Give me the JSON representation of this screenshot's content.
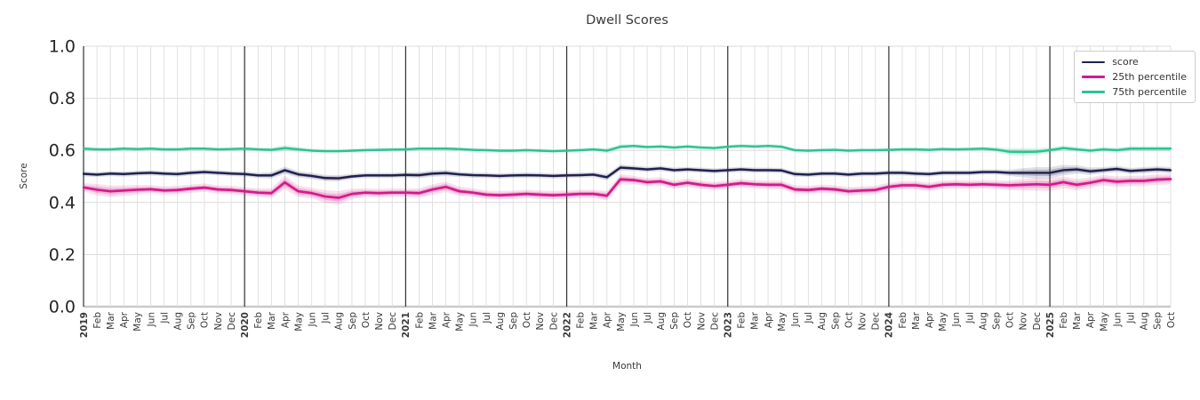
{
  "chart": {
    "title": "Dwell Scores",
    "xlabel": "Month",
    "ylabel": "Score"
  },
  "legend": {
    "items": [
      {
        "label": "score",
        "color": "#20204e"
      },
      {
        "label": "25th percentile",
        "color": "#d41a8a"
      },
      {
        "label": "75th percentile",
        "color": "#2bc48f"
      }
    ]
  },
  "chart_data": {
    "type": "line",
    "title": "Dwell Scores",
    "xlabel": "Month",
    "ylabel": "Score",
    "ylim": [
      0.0,
      1.0
    ],
    "yticks": [
      0.0,
      0.2,
      0.4,
      0.6,
      0.8,
      1.0
    ],
    "grid": true,
    "legend_position": "upper right",
    "year_tick_indices": [
      0,
      12,
      24,
      36,
      48,
      60,
      72
    ],
    "x_labels": [
      "2019",
      "Feb",
      "Mar",
      "Apr",
      "May",
      "Jun",
      "Jul",
      "Aug",
      "Sep",
      "Oct",
      "Nov",
      "Dec",
      "2020",
      "Feb",
      "Mar",
      "Apr",
      "May",
      "Jun",
      "Jul",
      "Aug",
      "Sep",
      "Oct",
      "Nov",
      "Dec",
      "2021",
      "Feb",
      "Mar",
      "Apr",
      "May",
      "Jun",
      "Jul",
      "Aug",
      "Sep",
      "Oct",
      "Nov",
      "Dec",
      "2022",
      "Feb",
      "Mar",
      "Apr",
      "May",
      "Jun",
      "Jul",
      "Aug",
      "Sep",
      "Oct",
      "Nov",
      "Dec",
      "2023",
      "Feb",
      "Mar",
      "Apr",
      "May",
      "Jun",
      "Jul",
      "Aug",
      "Sep",
      "Oct",
      "Nov",
      "Dec",
      "2024",
      "Feb",
      "Mar",
      "Apr",
      "May",
      "Jun",
      "Jul",
      "Aug",
      "Sep",
      "Oct",
      "Nov",
      "Dec",
      "2025",
      "Feb",
      "Mar",
      "Apr",
      "May",
      "Jun",
      "Jul",
      "Aug",
      "Sep",
      "Oct"
    ],
    "series": [
      {
        "name": "score",
        "color": "#20204e",
        "values": [
          0.51,
          0.507,
          0.511,
          0.509,
          0.512,
          0.514,
          0.511,
          0.509,
          0.514,
          0.517,
          0.514,
          0.511,
          0.509,
          0.504,
          0.504,
          0.524,
          0.508,
          0.502,
          0.494,
          0.493,
          0.5,
          0.504,
          0.504,
          0.504,
          0.506,
          0.505,
          0.511,
          0.513,
          0.508,
          0.505,
          0.504,
          0.502,
          0.504,
          0.505,
          0.504,
          0.502,
          0.504,
          0.505,
          0.507,
          0.497,
          0.534,
          0.531,
          0.527,
          0.531,
          0.524,
          0.527,
          0.524,
          0.521,
          0.524,
          0.527,
          0.524,
          0.524,
          0.523,
          0.509,
          0.507,
          0.511,
          0.511,
          0.507,
          0.511,
          0.511,
          0.514,
          0.514,
          0.511,
          0.509,
          0.514,
          0.514,
          0.514,
          0.517,
          0.517,
          0.514,
          0.514,
          0.514,
          0.514,
          0.524,
          0.527,
          0.52,
          0.524,
          0.529,
          0.521,
          0.524,
          0.527,
          0.524
        ],
        "band_halfwidth": [
          0.01,
          0.01,
          0.01,
          0.01,
          0.01,
          0.01,
          0.01,
          0.01,
          0.01,
          0.01,
          0.01,
          0.01,
          0.01,
          0.01,
          0.012,
          0.014,
          0.012,
          0.012,
          0.012,
          0.012,
          0.01,
          0.01,
          0.01,
          0.01,
          0.01,
          0.012,
          0.012,
          0.012,
          0.01,
          0.01,
          0.01,
          0.01,
          0.01,
          0.01,
          0.01,
          0.01,
          0.01,
          0.01,
          0.01,
          0.012,
          0.012,
          0.01,
          0.01,
          0.01,
          0.01,
          0.01,
          0.01,
          0.01,
          0.01,
          0.01,
          0.01,
          0.01,
          0.01,
          0.01,
          0.01,
          0.01,
          0.01,
          0.01,
          0.01,
          0.01,
          0.01,
          0.01,
          0.01,
          0.01,
          0.01,
          0.01,
          0.01,
          0.01,
          0.01,
          0.012,
          0.018,
          0.022,
          0.022,
          0.02,
          0.016,
          0.014,
          0.012,
          0.012,
          0.012,
          0.012,
          0.012,
          0.012
        ]
      },
      {
        "name": "25th percentile",
        "color": "#d41a8a",
        "values": [
          0.458,
          0.449,
          0.443,
          0.446,
          0.449,
          0.451,
          0.446,
          0.448,
          0.453,
          0.457,
          0.45,
          0.448,
          0.443,
          0.438,
          0.436,
          0.477,
          0.443,
          0.436,
          0.423,
          0.418,
          0.433,
          0.438,
          0.436,
          0.438,
          0.438,
          0.436,
          0.45,
          0.46,
          0.443,
          0.438,
          0.43,
          0.428,
          0.43,
          0.433,
          0.43,
          0.428,
          0.43,
          0.433,
          0.433,
          0.426,
          0.489,
          0.486,
          0.478,
          0.481,
          0.468,
          0.476,
          0.468,
          0.463,
          0.468,
          0.474,
          0.47,
          0.468,
          0.468,
          0.45,
          0.448,
          0.453,
          0.45,
          0.443,
          0.446,
          0.448,
          0.46,
          0.466,
          0.466,
          0.46,
          0.468,
          0.47,
          0.468,
          0.47,
          0.468,
          0.466,
          0.468,
          0.47,
          0.468,
          0.478,
          0.468,
          0.476,
          0.486,
          0.48,
          0.483,
          0.483,
          0.488,
          0.49
        ],
        "band_halfwidth": [
          0.016,
          0.022,
          0.022,
          0.02,
          0.018,
          0.016,
          0.016,
          0.016,
          0.016,
          0.016,
          0.016,
          0.016,
          0.016,
          0.016,
          0.018,
          0.026,
          0.022,
          0.02,
          0.024,
          0.026,
          0.02,
          0.016,
          0.016,
          0.016,
          0.016,
          0.018,
          0.02,
          0.02,
          0.018,
          0.016,
          0.016,
          0.016,
          0.016,
          0.016,
          0.016,
          0.016,
          0.016,
          0.016,
          0.016,
          0.018,
          0.02,
          0.016,
          0.016,
          0.016,
          0.016,
          0.016,
          0.016,
          0.016,
          0.016,
          0.016,
          0.016,
          0.016,
          0.016,
          0.016,
          0.016,
          0.016,
          0.016,
          0.016,
          0.016,
          0.016,
          0.016,
          0.016,
          0.016,
          0.016,
          0.016,
          0.016,
          0.016,
          0.016,
          0.016,
          0.018,
          0.022,
          0.024,
          0.024,
          0.022,
          0.022,
          0.02,
          0.02,
          0.02,
          0.02,
          0.02,
          0.02,
          0.02
        ]
      },
      {
        "name": "75th percentile",
        "color": "#2bc48f",
        "values": [
          0.607,
          0.604,
          0.604,
          0.607,
          0.605,
          0.607,
          0.604,
          0.604,
          0.607,
          0.607,
          0.604,
          0.605,
          0.607,
          0.604,
          0.602,
          0.609,
          0.604,
          0.599,
          0.597,
          0.597,
          0.599,
          0.601,
          0.602,
          0.603,
          0.604,
          0.607,
          0.607,
          0.607,
          0.605,
          0.602,
          0.601,
          0.599,
          0.599,
          0.601,
          0.599,
          0.597,
          0.599,
          0.601,
          0.604,
          0.599,
          0.614,
          0.617,
          0.613,
          0.615,
          0.611,
          0.615,
          0.611,
          0.609,
          0.614,
          0.617,
          0.615,
          0.617,
          0.614,
          0.601,
          0.599,
          0.601,
          0.602,
          0.599,
          0.601,
          0.601,
          0.602,
          0.604,
          0.604,
          0.602,
          0.605,
          0.604,
          0.605,
          0.607,
          0.603,
          0.595,
          0.594,
          0.595,
          0.601,
          0.609,
          0.604,
          0.599,
          0.604,
          0.601,
          0.607,
          0.607,
          0.607,
          0.607
        ],
        "band_halfwidth": [
          0.008,
          0.008,
          0.008,
          0.008,
          0.008,
          0.008,
          0.008,
          0.008,
          0.008,
          0.008,
          0.008,
          0.008,
          0.008,
          0.008,
          0.01,
          0.012,
          0.01,
          0.008,
          0.008,
          0.008,
          0.008,
          0.008,
          0.008,
          0.008,
          0.008,
          0.008,
          0.008,
          0.008,
          0.008,
          0.008,
          0.008,
          0.008,
          0.008,
          0.008,
          0.008,
          0.008,
          0.008,
          0.008,
          0.008,
          0.01,
          0.01,
          0.008,
          0.008,
          0.008,
          0.008,
          0.008,
          0.008,
          0.008,
          0.008,
          0.008,
          0.008,
          0.008,
          0.008,
          0.008,
          0.008,
          0.008,
          0.008,
          0.008,
          0.008,
          0.008,
          0.008,
          0.008,
          0.008,
          0.008,
          0.008,
          0.008,
          0.008,
          0.008,
          0.01,
          0.014,
          0.016,
          0.014,
          0.012,
          0.01,
          0.01,
          0.01,
          0.01,
          0.01,
          0.01,
          0.01,
          0.01,
          0.01
        ]
      }
    ]
  }
}
